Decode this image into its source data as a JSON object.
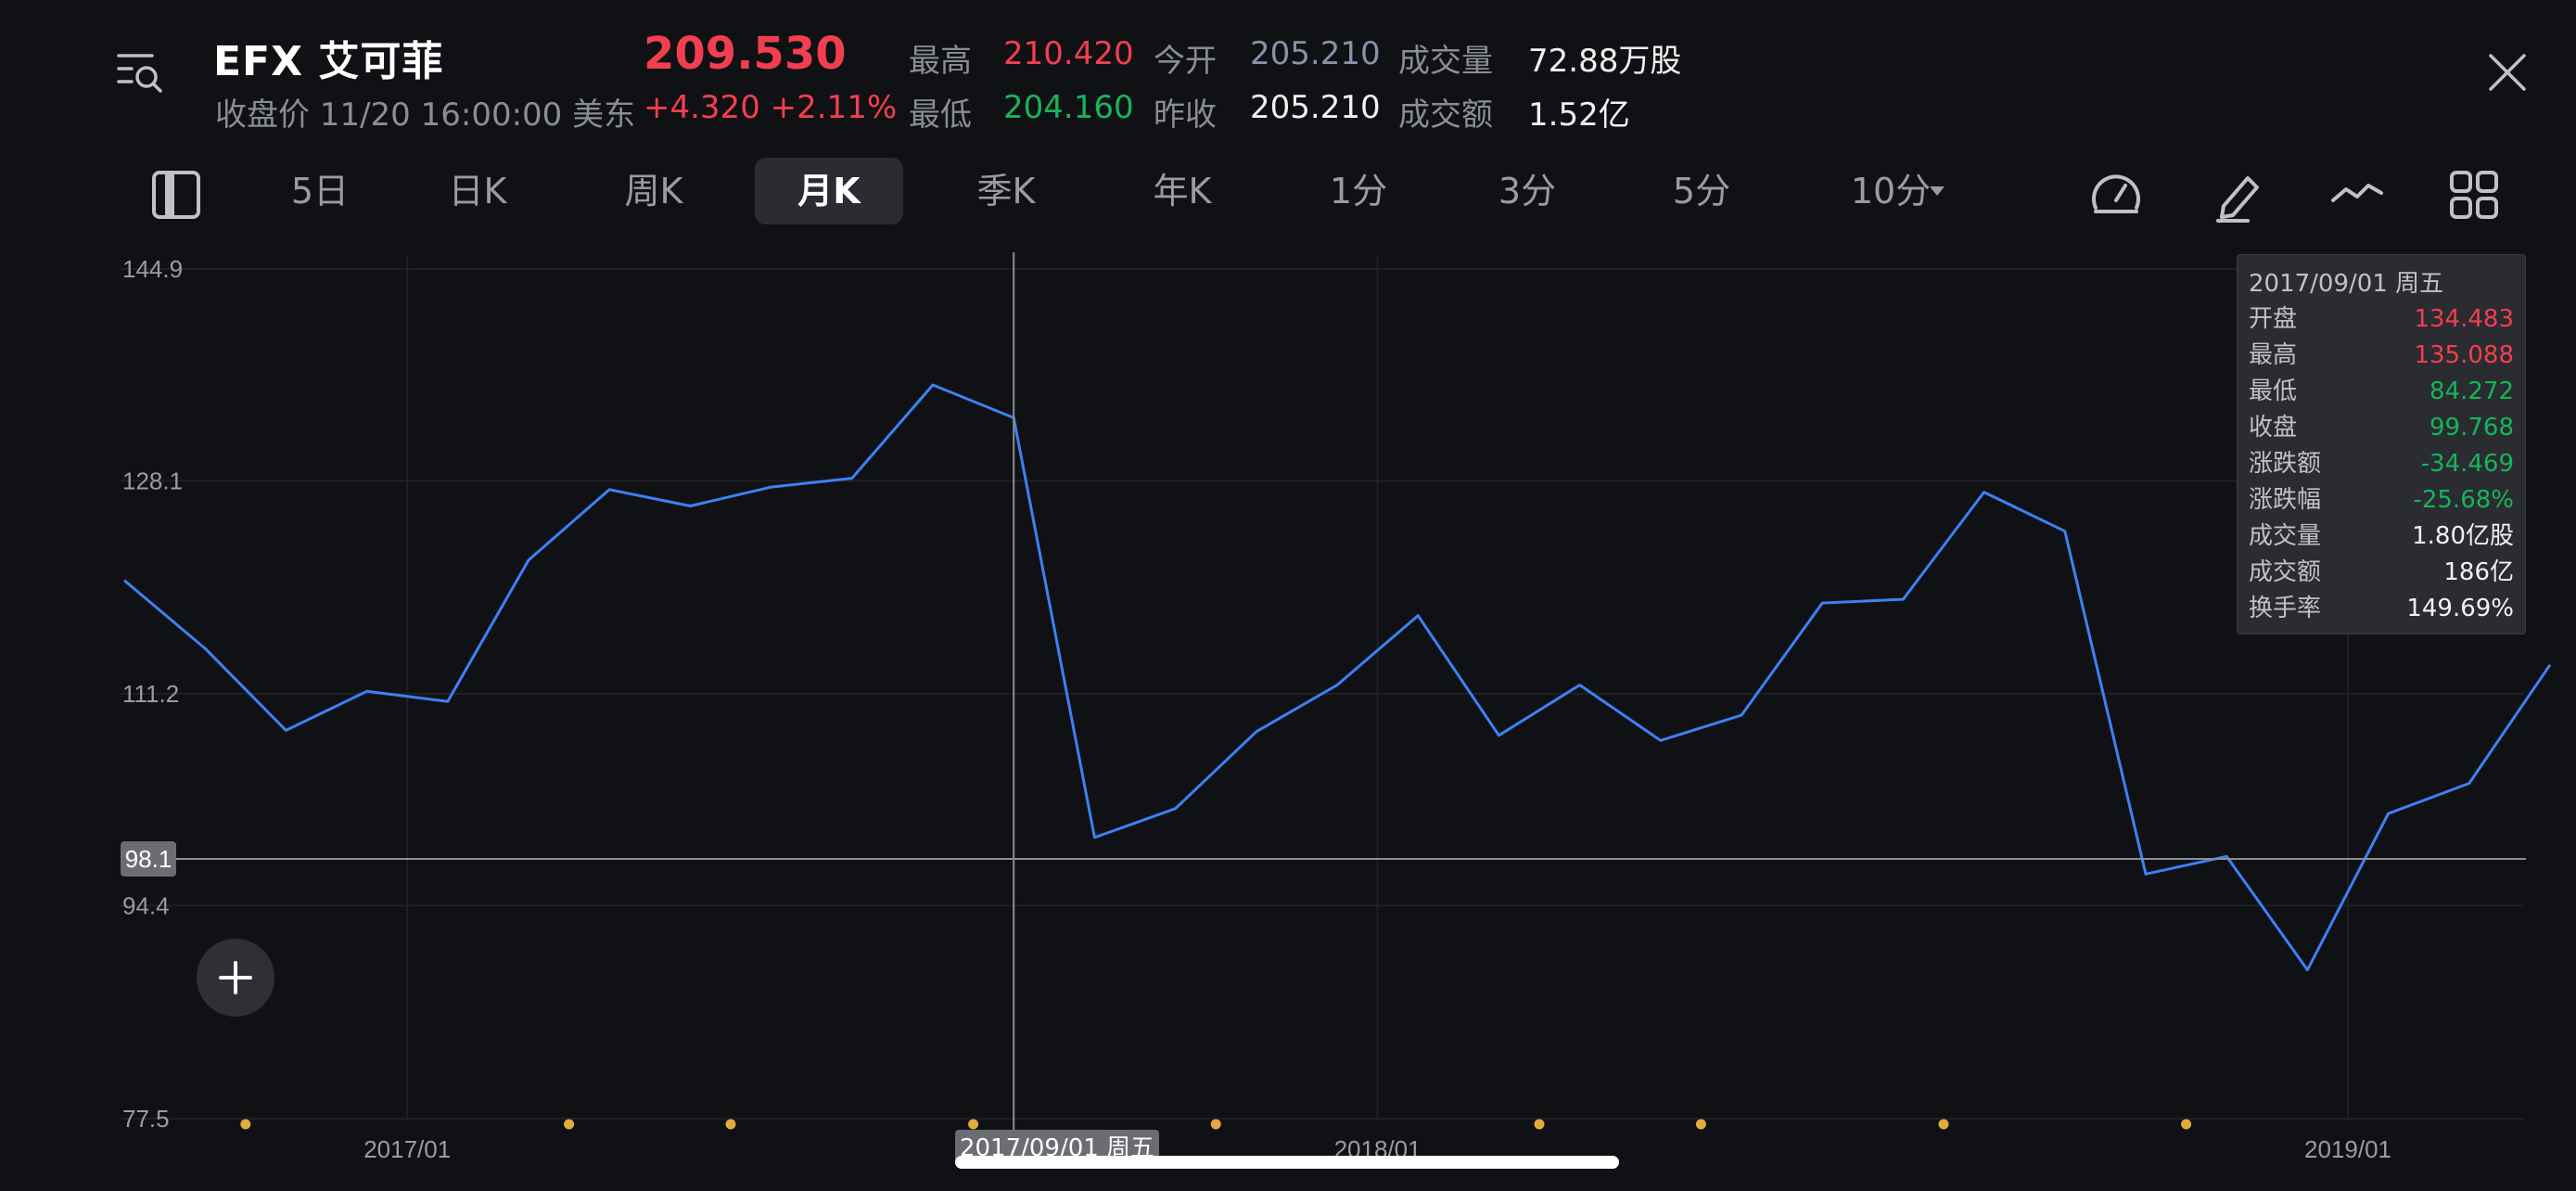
{
  "header": {
    "title": "EFX  艾可菲",
    "subtitle": "收盘价 11/20 16:00:00 美东",
    "price": "209.530",
    "change": "+4.320  +2.11%",
    "stats": {
      "high_label": "最高",
      "high": "210.420",
      "low_label": "最低",
      "low": "204.160",
      "open_label": "今开",
      "open": "205.210",
      "prev_close_label": "昨收",
      "prev_close": "205.210",
      "volume_label": "成交量",
      "volume": "72.88万股",
      "amount_label": "成交额",
      "amount": "1.52亿"
    }
  },
  "tabs": [
    {
      "label": "5日"
    },
    {
      "label": "日K"
    },
    {
      "label": "周K"
    },
    {
      "label": "月K"
    },
    {
      "label": "季K"
    },
    {
      "label": "年K"
    },
    {
      "label": "1分"
    },
    {
      "label": "3分"
    },
    {
      "label": "5分"
    },
    {
      "label": "10分"
    }
  ],
  "active_tab": "月K",
  "icons": [
    "menu-search-icon",
    "close-icon",
    "layout-toggle-icon",
    "dropdown-caret-icon",
    "speedometer-icon",
    "pen-icon",
    "indicator-line-icon",
    "grid-apps-icon",
    "plus-icon"
  ],
  "colors": {
    "background": "#101114",
    "line": "#3b82f6",
    "up": "#f23f4f",
    "down": "#16b55a",
    "marker": "#e5a93d"
  },
  "tooltip": {
    "date": "2017/09/01 周五",
    "rows": [
      {
        "key": "开盘",
        "value": "134.483",
        "tone": "red"
      },
      {
        "key": "最高",
        "value": "135.088",
        "tone": "red"
      },
      {
        "key": "最低",
        "value": "84.272",
        "tone": "green"
      },
      {
        "key": "收盘",
        "value": "99.768",
        "tone": "green"
      },
      {
        "key": "涨跌额",
        "value": "-34.469",
        "tone": "green"
      },
      {
        "key": "涨跌幅",
        "value": "-25.68%",
        "tone": "green"
      },
      {
        "key": "成交量",
        "value": "1.80亿股",
        "tone": "white"
      },
      {
        "key": "成交额",
        "value": "186亿",
        "tone": "white"
      },
      {
        "key": "换手率",
        "value": "149.69%",
        "tone": "white"
      }
    ]
  },
  "crosshair": {
    "value_label": "98.1",
    "value": 98.1,
    "date_label": "2017/09/01 周五",
    "index": 11
  },
  "chart_data": {
    "type": "line",
    "ylim": [
      77.5,
      144.9
    ],
    "y_ticks": [
      "144.9",
      "128.1",
      "111.2",
      "94.4",
      "77.5"
    ],
    "y_tick_values": [
      144.9,
      128.1,
      111.2,
      94.4,
      77.5
    ],
    "x_tick_labels": [
      "2017/01",
      "2018/01",
      "2019/01"
    ],
    "x_tick_indices": [
      3.5,
      15.5,
      27.5
    ],
    "series": [
      {
        "values": [
          120.2,
          114.8,
          108.3,
          111.4,
          110.6,
          121.8,
          127.4,
          126.1,
          127.6,
          128.3,
          135.7,
          133.1,
          99.8,
          102.1,
          108.2,
          111.9,
          117.4,
          107.9,
          111.9,
          107.5,
          109.5,
          118.4,
          118.7,
          127.2,
          124.1,
          96.9,
          98.3,
          89.3,
          101.7,
          104.1,
          113.5
        ]
      }
    ],
    "event_marker_indices": [
      1.5,
      5.5,
      7.5,
      10.5,
      13.5,
      17.5,
      19.5,
      22.5,
      25.5
    ]
  }
}
